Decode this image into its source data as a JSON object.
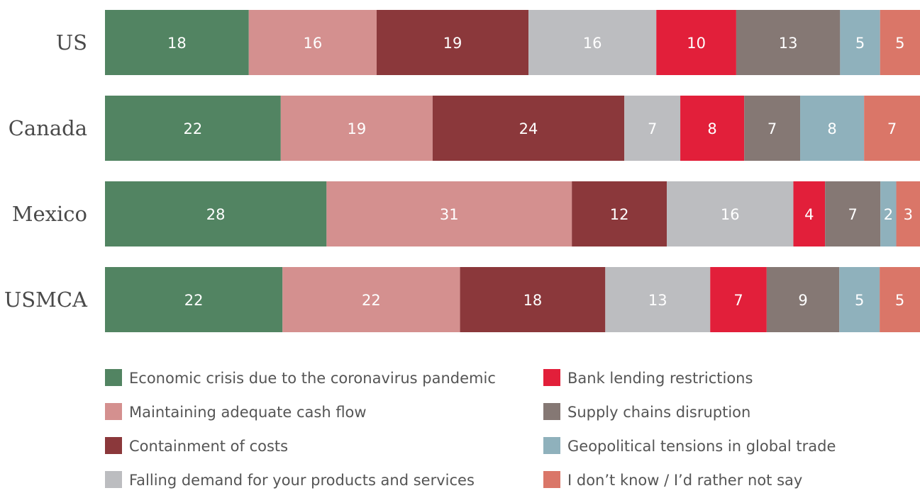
{
  "chart_data": {
    "type": "bar",
    "orientation": "horizontal",
    "stacked": true,
    "categories": [
      "US",
      "Canada",
      "Mexico",
      "USMCA"
    ],
    "series": [
      {
        "name": "Economic crisis due to the coronavirus pandemic",
        "color": "#528462",
        "values": [
          18,
          22,
          28,
          22
        ]
      },
      {
        "name": "Maintaining adequate cash flow",
        "color": "#d4908f",
        "values": [
          16,
          19,
          31,
          22
        ]
      },
      {
        "name": "Containment of costs",
        "color": "#8b383b",
        "values": [
          19,
          24,
          12,
          18
        ]
      },
      {
        "name": "Falling demand for your products and services",
        "color": "#bcbdc0",
        "values": [
          16,
          7,
          16,
          13
        ]
      },
      {
        "name": "Bank lending restrictions",
        "color": "#e21f3a",
        "values": [
          10,
          8,
          4,
          7
        ]
      },
      {
        "name": "Supply chains disruption",
        "color": "#857874",
        "values": [
          13,
          7,
          7,
          9
        ]
      },
      {
        "name": "Geopolitical tensions in global trade",
        "color": "#8fb1bc",
        "values": [
          5,
          8,
          2,
          5
        ]
      },
      {
        "name": "I don’t know / I’d rather not say",
        "color": "#da7668",
        "values": [
          5,
          7,
          3,
          5
        ]
      }
    ],
    "show_data_labels": true,
    "grid": false,
    "legend_position": "bottom"
  }
}
